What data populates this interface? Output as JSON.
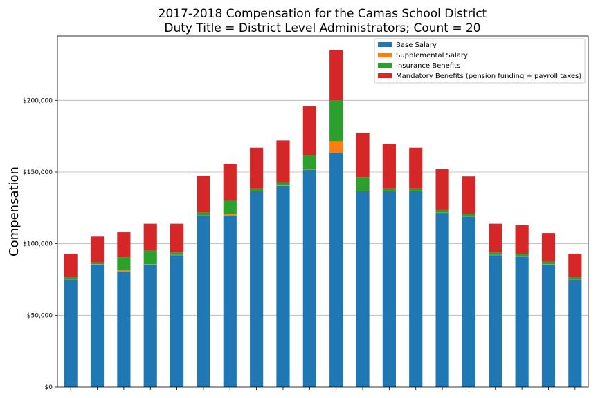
{
  "chart_data": {
    "type": "bar",
    "stacked": true,
    "title": "2017-2018 Compensation for the Camas School District",
    "subtitle": "Duty Title = District Level Administrators; Count = 20",
    "xlabel": "",
    "ylabel": "Compensation",
    "ylim": [
      0,
      245000
    ],
    "yticks": [
      0,
      50000,
      100000,
      150000,
      200000
    ],
    "ytick_labels": [
      "$0",
      "$50,000",
      "$100,000",
      "$150,000",
      "$200,000"
    ],
    "grid": "horizontal",
    "legend_position": "top-right",
    "series": [
      {
        "name": "Base Salary",
        "color": "#1f77b4",
        "values": [
          75000,
          85500,
          80500,
          85500,
          92000,
          119500,
          119500,
          136500,
          140500,
          151500,
          163500,
          136500,
          136500,
          136500,
          121500,
          119000,
          92000,
          91000,
          85500,
          75000
        ]
      },
      {
        "name": "Supplemental Salary",
        "color": "#ff7f0e",
        "values": [
          200,
          200,
          1000,
          200,
          200,
          200,
          1000,
          200,
          200,
          200,
          8000,
          200,
          200,
          200,
          200,
          200,
          200,
          200,
          200,
          200
        ]
      },
      {
        "name": "Insurance Benefits",
        "color": "#2ca02c",
        "values": [
          1300,
          1300,
          9000,
          9500,
          1800,
          2300,
          9500,
          1800,
          1800,
          10300,
          28500,
          9800,
          1800,
          1800,
          1800,
          1800,
          1800,
          1800,
          1800,
          1300
        ]
      },
      {
        "name": "Mandatory Benefits (pension funding + payroll taxes)",
        "color": "#d62728",
        "values": [
          16500,
          18000,
          17500,
          18800,
          20000,
          25500,
          25500,
          28500,
          29500,
          33800,
          35000,
          31000,
          31000,
          28500,
          28500,
          26000,
          20000,
          20000,
          20000,
          16500
        ]
      }
    ]
  }
}
